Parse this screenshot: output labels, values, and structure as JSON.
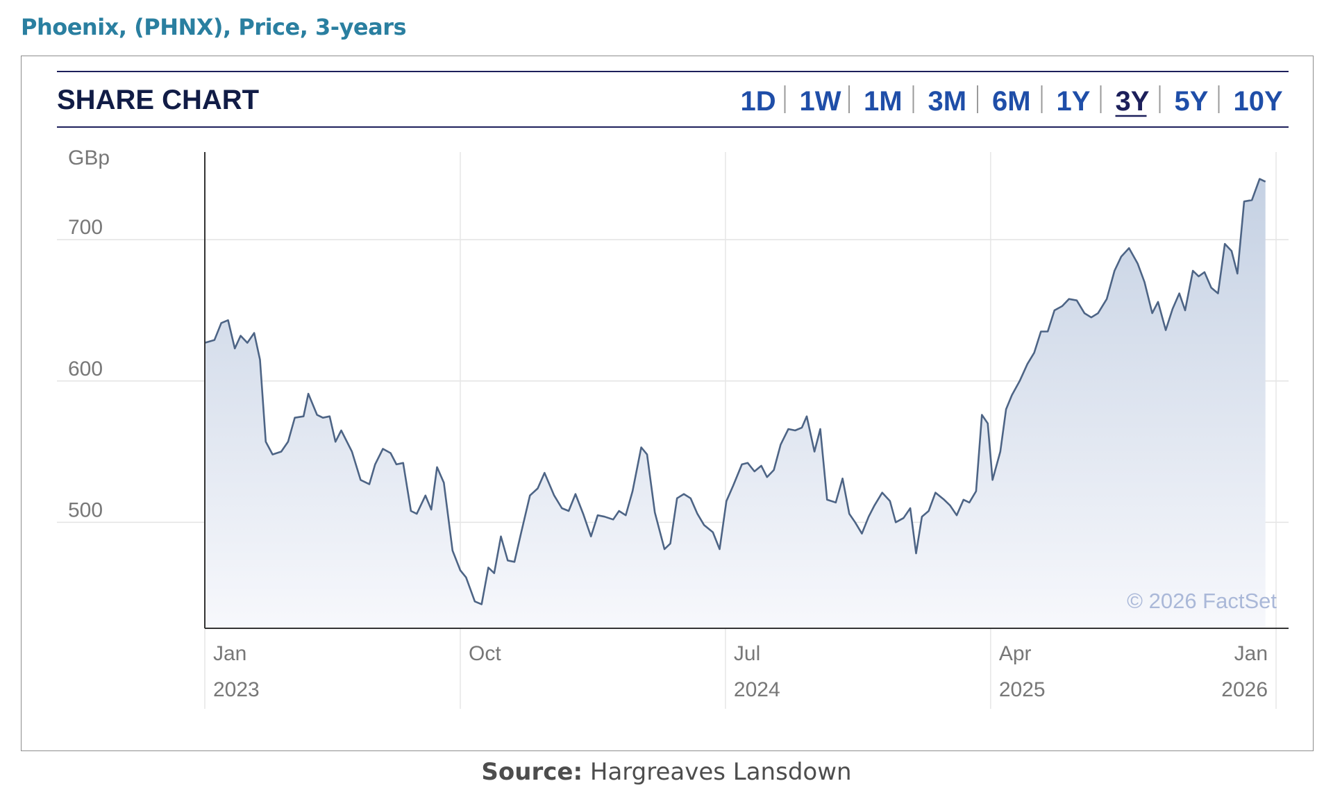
{
  "header": {
    "title": "Phoenix, (PHNX), Price, 3-years",
    "source_label": "Source:",
    "source_text": "Hargreaves Lansdown"
  },
  "widget": {
    "title": "SHARE CHART",
    "ranges": [
      "1D",
      "1W",
      "1M",
      "3M",
      "6M",
      "1Y",
      "3Y",
      "5Y",
      "10Y"
    ],
    "selected_range": "3Y",
    "copyright": "© 2026 FactSet"
  },
  "colors": {
    "title": "#2a7fa0",
    "range_links": "#1f4ea8",
    "selected_range": "#1c1f5a",
    "line": "#4d6485",
    "area_top": "#c5d1e3",
    "area_bottom": "#f7f8fc"
  },
  "chart_data": {
    "type": "area",
    "title": "",
    "ylabel": "GBp",
    "xlabel": "",
    "ylim": [
      425,
      762
    ],
    "yticks": [
      500,
      600,
      700
    ],
    "xlim": [
      "2023-01-10",
      "2026-01-26"
    ],
    "xticks": [
      {
        "date": "2023-01-10",
        "label": "Jan",
        "year": "2023"
      },
      {
        "date": "2023-10-01",
        "label": "Oct",
        "year": ""
      },
      {
        "date": "2024-07-01",
        "label": "Jul",
        "year": "2024"
      },
      {
        "date": "2025-04-01",
        "label": "Apr",
        "year": "2025"
      },
      {
        "date": "2026-01-21",
        "label": "Jan",
        "year": "2026"
      }
    ],
    "grid": true,
    "series": [
      {
        "name": "",
        "points": [
          [
            "2023-01-10",
            627
          ],
          [
            "2023-01-20",
            629
          ],
          [
            "2023-01-27",
            641
          ],
          [
            "2023-02-03",
            643
          ],
          [
            "2023-02-10",
            623
          ],
          [
            "2023-02-16",
            632
          ],
          [
            "2023-02-23",
            627
          ],
          [
            "2023-03-02",
            634
          ],
          [
            "2023-03-08",
            615
          ],
          [
            "2023-03-14",
            557
          ],
          [
            "2023-03-21",
            548
          ],
          [
            "2023-03-30",
            550
          ],
          [
            "2023-04-06",
            557
          ],
          [
            "2023-04-13",
            574
          ],
          [
            "2023-04-22",
            575
          ],
          [
            "2023-04-27",
            591
          ],
          [
            "2023-05-06",
            576
          ],
          [
            "2023-05-12",
            574
          ],
          [
            "2023-05-19",
            575
          ],
          [
            "2023-05-25",
            557
          ],
          [
            "2023-05-31",
            565
          ],
          [
            "2023-06-11",
            550
          ],
          [
            "2023-06-20",
            530
          ],
          [
            "2023-06-29",
            527
          ],
          [
            "2023-07-05",
            541
          ],
          [
            "2023-07-13",
            552
          ],
          [
            "2023-07-21",
            549
          ],
          [
            "2023-07-27",
            541
          ],
          [
            "2023-08-03",
            542
          ],
          [
            "2023-08-11",
            508
          ],
          [
            "2023-08-17",
            506
          ],
          [
            "2023-08-26",
            519
          ],
          [
            "2023-09-01",
            509
          ],
          [
            "2023-09-07",
            539
          ],
          [
            "2023-09-14",
            528
          ],
          [
            "2023-09-23",
            480
          ],
          [
            "2023-10-01",
            466
          ],
          [
            "2023-10-07",
            461
          ],
          [
            "2023-10-16",
            444
          ],
          [
            "2023-10-23",
            442
          ],
          [
            "2023-10-30",
            468
          ],
          [
            "2023-11-05",
            464
          ],
          [
            "2023-11-12",
            490
          ],
          [
            "2023-11-19",
            473
          ],
          [
            "2023-11-26",
            472
          ],
          [
            "2023-12-03",
            493
          ],
          [
            "2023-12-12",
            519
          ],
          [
            "2023-12-20",
            524
          ],
          [
            "2023-12-27",
            535
          ],
          [
            "2024-01-06",
            519
          ],
          [
            "2024-01-14",
            510
          ],
          [
            "2024-01-21",
            508
          ],
          [
            "2024-01-28",
            520
          ],
          [
            "2024-02-05",
            506
          ],
          [
            "2024-02-13",
            490
          ],
          [
            "2024-02-20",
            505
          ],
          [
            "2024-02-27",
            504
          ],
          [
            "2024-03-07",
            502
          ],
          [
            "2024-03-13",
            508
          ],
          [
            "2024-03-20",
            505
          ],
          [
            "2024-03-27",
            522
          ],
          [
            "2024-04-05",
            553
          ],
          [
            "2024-04-11",
            548
          ],
          [
            "2024-04-19",
            507
          ],
          [
            "2024-04-29",
            481
          ],
          [
            "2024-05-05",
            485
          ],
          [
            "2024-05-12",
            517
          ],
          [
            "2024-05-19",
            520
          ],
          [
            "2024-05-26",
            517
          ],
          [
            "2024-06-02",
            506
          ],
          [
            "2024-06-09",
            498
          ],
          [
            "2024-06-18",
            493
          ],
          [
            "2024-06-25",
            481
          ],
          [
            "2024-07-02",
            515
          ],
          [
            "2024-07-09",
            526
          ],
          [
            "2024-07-18",
            541
          ],
          [
            "2024-07-24",
            542
          ],
          [
            "2024-07-31",
            536
          ],
          [
            "2024-08-07",
            540
          ],
          [
            "2024-08-13",
            532
          ],
          [
            "2024-08-20",
            537
          ],
          [
            "2024-08-27",
            555
          ],
          [
            "2024-09-04",
            566
          ],
          [
            "2024-09-11",
            565
          ],
          [
            "2024-09-18",
            567
          ],
          [
            "2024-09-23",
            575
          ],
          [
            "2024-10-01",
            550
          ],
          [
            "2024-10-07",
            566
          ],
          [
            "2024-10-14",
            516
          ],
          [
            "2024-10-23",
            514
          ],
          [
            "2024-10-30",
            531
          ],
          [
            "2024-11-06",
            506
          ],
          [
            "2024-11-12",
            500
          ],
          [
            "2024-11-19",
            492
          ],
          [
            "2024-11-26",
            504
          ],
          [
            "2024-12-02",
            512
          ],
          [
            "2024-12-10",
            521
          ],
          [
            "2024-12-18",
            515
          ],
          [
            "2024-12-24",
            500
          ],
          [
            "2025-01-01",
            503
          ],
          [
            "2025-01-08",
            510
          ],
          [
            "2025-01-14",
            478
          ],
          [
            "2025-01-20",
            504
          ],
          [
            "2025-01-27",
            508
          ],
          [
            "2025-02-03",
            521
          ],
          [
            "2025-02-12",
            516
          ],
          [
            "2025-02-18",
            512
          ],
          [
            "2025-02-25",
            505
          ],
          [
            "2025-03-04",
            516
          ],
          [
            "2025-03-10",
            514
          ],
          [
            "2025-03-17",
            522
          ],
          [
            "2025-03-23",
            576
          ],
          [
            "2025-03-29",
            570
          ],
          [
            "2025-04-03",
            530
          ],
          [
            "2025-04-11",
            550
          ],
          [
            "2025-04-17",
            580
          ],
          [
            "2025-04-23",
            590
          ],
          [
            "2025-05-01",
            600
          ],
          [
            "2025-05-09",
            612
          ],
          [
            "2025-05-16",
            620
          ],
          [
            "2025-05-23",
            635
          ],
          [
            "2025-05-30",
            635
          ],
          [
            "2025-06-06",
            650
          ],
          [
            "2025-06-14",
            653
          ],
          [
            "2025-06-21",
            658
          ],
          [
            "2025-06-29",
            657
          ],
          [
            "2025-07-07",
            648
          ],
          [
            "2025-07-14",
            645
          ],
          [
            "2025-07-21",
            648
          ],
          [
            "2025-07-30",
            658
          ],
          [
            "2025-08-07",
            678
          ],
          [
            "2025-08-14",
            688
          ],
          [
            "2025-08-22",
            694
          ],
          [
            "2025-08-31",
            683
          ],
          [
            "2025-09-07",
            670
          ],
          [
            "2025-09-15",
            648
          ],
          [
            "2025-09-21",
            656
          ],
          [
            "2025-09-29",
            636
          ],
          [
            "2025-10-06",
            651
          ],
          [
            "2025-10-13",
            662
          ],
          [
            "2025-10-19",
            650
          ],
          [
            "2025-10-27",
            678
          ],
          [
            "2025-11-02",
            674
          ],
          [
            "2025-11-08",
            677
          ],
          [
            "2025-11-15",
            666
          ],
          [
            "2025-11-22",
            662
          ],
          [
            "2025-11-29",
            697
          ],
          [
            "2025-12-06",
            692
          ],
          [
            "2025-12-12",
            676
          ],
          [
            "2025-12-19",
            727
          ],
          [
            "2025-12-27",
            728
          ],
          [
            "2026-01-04",
            743
          ],
          [
            "2026-01-10",
            741
          ]
        ]
      }
    ]
  }
}
